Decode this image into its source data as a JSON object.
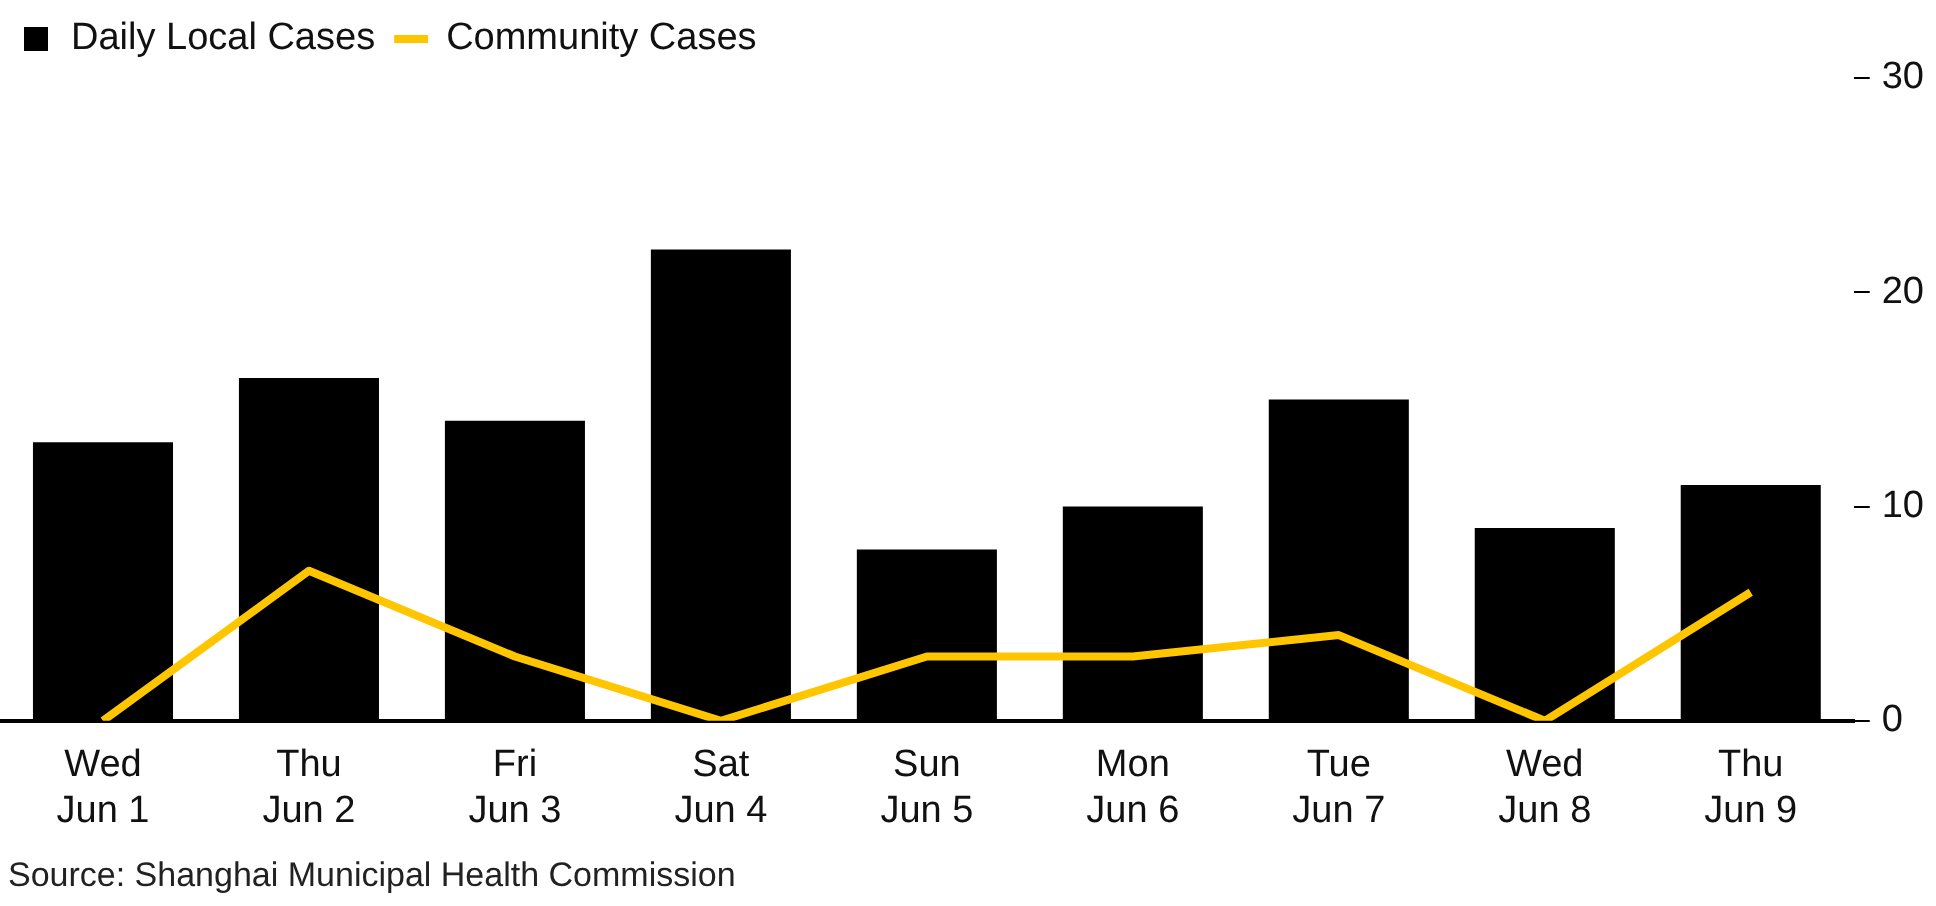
{
  "chart_data": {
    "type": "bar",
    "categories": [
      "Wed\nJun 1",
      "Thu\nJun 2",
      "Fri\nJun 3",
      "Sat\nJun 4",
      "Sun\nJun 5",
      "Mon\nJun 6",
      "Tue\nJun 7",
      "Wed\nJun 8",
      "Thu\nJun 9"
    ],
    "series": [
      {
        "name": "Daily Local Cases",
        "color": "#000000",
        "values": [
          13,
          16,
          14,
          22,
          8,
          10,
          15,
          9,
          11
        ]
      },
      {
        "name": "Community Cases",
        "type": "line",
        "color": "#ffc600",
        "values": [
          0,
          7,
          3,
          0,
          3,
          3,
          4,
          0,
          6
        ]
      }
    ],
    "ylim": [
      0,
      30
    ],
    "yticks": [
      0,
      10,
      20,
      30
    ],
    "grid": false,
    "legend": "top left",
    "marker": "none",
    "annotations": [
      "Source: Shanghai Municipal Health Commission"
    ]
  }
}
